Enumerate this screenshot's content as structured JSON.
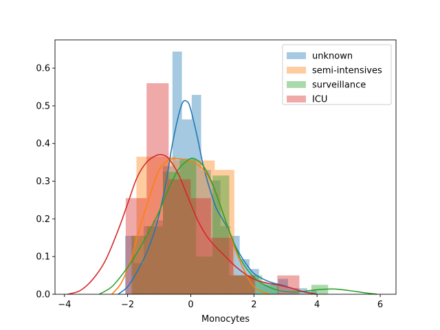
{
  "chart_data": {
    "type": "histogram-kde",
    "title": "",
    "xlabel": "Monocytes",
    "ylabel": "",
    "xlim": [
      -4.3,
      6.5
    ],
    "ylim": [
      0,
      0.675
    ],
    "x_ticks": [
      -4,
      -2,
      0,
      2,
      4,
      6
    ],
    "y_ticks": [
      0.0,
      0.1,
      0.2,
      0.3,
      0.4,
      0.5,
      0.6
    ],
    "x_tick_labels": [
      "−4",
      "−2",
      "0",
      "2",
      "4",
      "6"
    ],
    "y_tick_labels": [
      "0.0",
      "0.1",
      "0.2",
      "0.3",
      "0.4",
      "0.5",
      "0.6"
    ],
    "legend_position": "upper right",
    "series": [
      {
        "name": "unknown",
        "color": "#1f77b4",
        "bars": [
          {
            "x0": -2.08,
            "x1": -1.8,
            "y": 0.155
          },
          {
            "x0": -1.8,
            "x1": -1.49,
            "y": 0.082
          },
          {
            "x0": -1.49,
            "x1": -1.19,
            "y": 0.181
          },
          {
            "x0": -1.19,
            "x1": -0.88,
            "y": 0.196
          },
          {
            "x0": -0.88,
            "x1": -0.58,
            "y": 0.34
          },
          {
            "x0": -0.58,
            "x1": -0.28,
            "y": 0.644
          },
          {
            "x0": -0.28,
            "x1": 0.03,
            "y": 0.464
          },
          {
            "x0": 0.03,
            "x1": 0.33,
            "y": 0.529
          },
          {
            "x0": 0.33,
            "x1": 0.64,
            "y": 0.33
          },
          {
            "x0": 0.64,
            "x1": 0.94,
            "y": 0.302
          },
          {
            "x0": 0.94,
            "x1": 1.25,
            "y": 0.181
          },
          {
            "x0": 1.25,
            "x1": 1.55,
            "y": 0.155
          },
          {
            "x0": 1.55,
            "x1": 1.86,
            "y": 0.093
          },
          {
            "x0": 1.86,
            "x1": 2.16,
            "y": 0.067
          },
          {
            "x0": 2.16,
            "x1": 2.47,
            "y": 0.031
          },
          {
            "x0": 2.47,
            "x1": 2.77,
            "y": 0.026
          },
          {
            "x0": 2.77,
            "x1": 3.08,
            "y": 0.041
          },
          {
            "x0": 3.08,
            "x1": 3.38,
            "y": 0.016
          },
          {
            "x0": 3.38,
            "x1": 3.69,
            "y": 0.016
          },
          {
            "x0": 3.69,
            "x1": 3.99,
            "y": 0.01
          }
        ],
        "kde_x": [
          -2.3,
          -2.0,
          -1.7,
          -1.4,
          -1.1,
          -0.8,
          -0.6,
          -0.4,
          -0.25,
          -0.1,
          0.0,
          0.2,
          0.4,
          0.6,
          0.8,
          1.0,
          1.2,
          1.4,
          1.6,
          1.8,
          2.0,
          2.3,
          2.6,
          2.9,
          3.2,
          3.5,
          3.8,
          4.0
        ],
        "kde_y": [
          0.0,
          0.02,
          0.06,
          0.11,
          0.18,
          0.29,
          0.39,
          0.47,
          0.51,
          0.51,
          0.49,
          0.42,
          0.34,
          0.28,
          0.23,
          0.2,
          0.17,
          0.13,
          0.1,
          0.075,
          0.055,
          0.04,
          0.03,
          0.024,
          0.016,
          0.008,
          0.003,
          0.0
        ]
      },
      {
        "name": "semi-intensives",
        "color": "#ff7f0e",
        "bars": [
          {
            "x0": -1.85,
            "x1": -1.72,
            "y": 0.155
          },
          {
            "x0": -1.72,
            "x1": -1.1,
            "y": 0.365
          },
          {
            "x0": -1.1,
            "x1": -0.48,
            "y": 0.365
          },
          {
            "x0": -0.48,
            "x1": 0.14,
            "y": 0.355
          },
          {
            "x0": 0.14,
            "x1": 0.76,
            "y": 0.355
          },
          {
            "x0": 0.76,
            "x1": 1.38,
            "y": 0.33
          },
          {
            "x0": 1.38,
            "x1": 2.0,
            "y": 0.051
          }
        ],
        "kde_x": [
          -2.5,
          -2.2,
          -1.9,
          -1.6,
          -1.3,
          -1.0,
          -0.7,
          -0.4,
          -0.1,
          0.2,
          0.5,
          0.8,
          1.0,
          1.2,
          1.4,
          1.6,
          1.8,
          2.0,
          2.2,
          2.5
        ],
        "kde_y": [
          0.0,
          0.03,
          0.09,
          0.18,
          0.26,
          0.33,
          0.356,
          0.36,
          0.355,
          0.345,
          0.32,
          0.27,
          0.22,
          0.17,
          0.12,
          0.08,
          0.045,
          0.02,
          0.008,
          0.0
        ]
      },
      {
        "name": "surveillance",
        "color": "#2ca02c",
        "bars": [
          {
            "x0": -1.88,
            "x1": -1.4,
            "y": 0.155
          },
          {
            "x0": -1.4,
            "x1": -0.88,
            "y": 0.18
          },
          {
            "x0": -0.88,
            "x1": -0.35,
            "y": 0.325
          },
          {
            "x0": -0.35,
            "x1": 0.17,
            "y": 0.36
          },
          {
            "x0": 0.17,
            "x1": 0.69,
            "y": 0.1
          },
          {
            "x0": 0.69,
            "x1": 1.22,
            "y": 0.315
          },
          {
            "x0": 1.22,
            "x1": 1.74,
            "y": 0.05
          },
          {
            "x0": 1.74,
            "x1": 2.26,
            "y": 0.05
          },
          {
            "x0": 2.26,
            "x1": 2.78,
            "y": 0.025
          },
          {
            "x0": 2.78,
            "x1": 3.3,
            "y": 0.0
          },
          {
            "x0": 3.3,
            "x1": 3.82,
            "y": 0.0
          },
          {
            "x0": 3.82,
            "x1": 4.35,
            "y": 0.025
          }
        ],
        "kde_x": [
          -2.9,
          -2.5,
          -2.1,
          -1.7,
          -1.3,
          -1.0,
          -0.7,
          -0.4,
          -0.1,
          0.1,
          0.4,
          0.7,
          1.0,
          1.3,
          1.6,
          2.0,
          2.4,
          2.8,
          3.2,
          3.6,
          4.0,
          4.5,
          5.0,
          5.5,
          5.9
        ],
        "kde_y": [
          0.0,
          0.02,
          0.06,
          0.11,
          0.17,
          0.22,
          0.28,
          0.33,
          0.355,
          0.36,
          0.34,
          0.29,
          0.22,
          0.15,
          0.09,
          0.045,
          0.022,
          0.01,
          0.006,
          0.008,
          0.012,
          0.014,
          0.01,
          0.004,
          0.0
        ]
      },
      {
        "name": "ICU",
        "color": "#d62728",
        "bars": [
          {
            "x0": -2.06,
            "x1": -1.4,
            "y": 0.255
          },
          {
            "x0": -1.4,
            "x1": -0.7,
            "y": 0.56
          },
          {
            "x0": -0.7,
            "x1": 0.0,
            "y": 0.305
          },
          {
            "x0": 0.0,
            "x1": 0.64,
            "y": 0.255
          },
          {
            "x0": 0.64,
            "x1": 1.34,
            "y": 0.15
          },
          {
            "x0": 1.34,
            "x1": 2.04,
            "y": 0.05
          },
          {
            "x0": 2.04,
            "x1": 2.74,
            "y": 0.0
          },
          {
            "x0": 2.74,
            "x1": 3.44,
            "y": 0.05
          }
        ],
        "kde_x": [
          -3.9,
          -3.5,
          -3.1,
          -2.7,
          -2.3,
          -2.0,
          -1.7,
          -1.4,
          -1.1,
          -0.9,
          -0.7,
          -0.4,
          -0.1,
          0.2,
          0.5,
          0.8,
          1.1,
          1.4,
          1.7,
          2.0,
          2.4,
          2.8,
          3.2,
          3.6,
          4.0
        ],
        "kde_y": [
          0.0,
          0.01,
          0.04,
          0.09,
          0.17,
          0.24,
          0.31,
          0.35,
          0.368,
          0.37,
          0.36,
          0.32,
          0.26,
          0.2,
          0.155,
          0.125,
          0.1,
          0.075,
          0.055,
          0.04,
          0.03,
          0.024,
          0.016,
          0.006,
          0.0
        ]
      }
    ]
  }
}
